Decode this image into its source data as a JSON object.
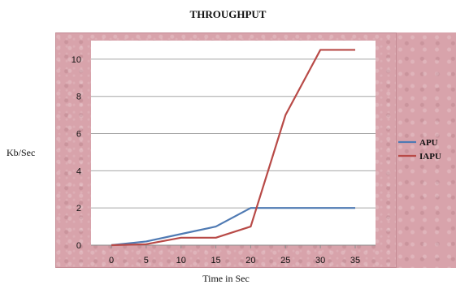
{
  "chart_data": {
    "type": "line",
    "title": "THROUGHPUT",
    "xlabel": "Time in Sec",
    "ylabel": "Kb/Sec",
    "x": [
      0,
      5,
      10,
      15,
      20,
      25,
      30,
      35
    ],
    "xlim": [
      0,
      35
    ],
    "ylim": [
      0,
      11
    ],
    "yticks": [
      0,
      2,
      4,
      6,
      8,
      10
    ],
    "grid": true,
    "legend_position": "right",
    "series": [
      {
        "name": "APU",
        "color": "#4f7ab3",
        "values": [
          0,
          0.2,
          0.6,
          1.0,
          2.0,
          2.0,
          2.0,
          2.0
        ]
      },
      {
        "name": "IAPU",
        "color": "#b84a47",
        "values": [
          0,
          0.05,
          0.4,
          0.4,
          1.0,
          7.0,
          10.5,
          10.5
        ]
      }
    ]
  }
}
